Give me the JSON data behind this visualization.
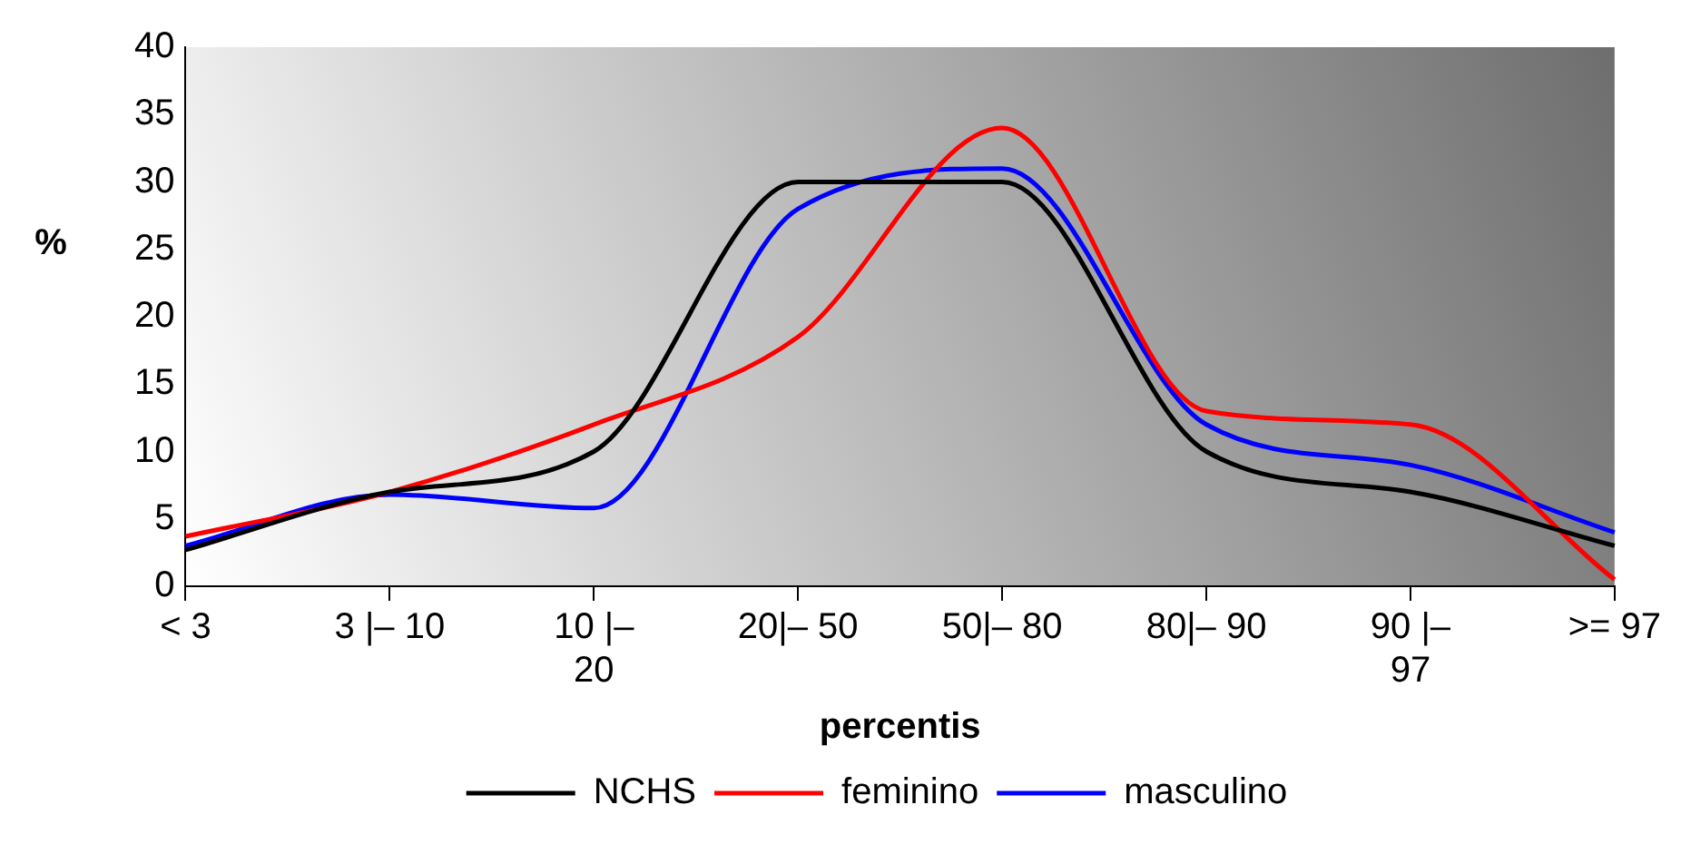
{
  "chart_data": {
    "type": "line",
    "xlabel": "percentis",
    "ylabel": "%",
    "categories": [
      "< 3",
      "3 |– 10",
      "10 |– 20",
      "20|– 50",
      "50|– 80",
      "80|– 90",
      "90 |– 97",
      ">= 97"
    ],
    "series": [
      {
        "name": "NCHS",
        "color": "#000000",
        "values": [
          2.7,
          7,
          10,
          30,
          30,
          10,
          7,
          3
        ]
      },
      {
        "name": "feminino",
        "color": "#ff0000",
        "values": [
          3.7,
          7,
          12,
          18.5,
          34,
          13,
          12,
          0.5
        ]
      },
      {
        "name": "masculino",
        "color": "#0000ff",
        "values": [
          3,
          6.8,
          5.8,
          28,
          31,
          12,
          9,
          4
        ]
      }
    ],
    "ylim": [
      0,
      40
    ],
    "yticks": [
      0,
      5,
      10,
      15,
      20,
      25,
      30,
      35,
      40
    ],
    "grid": false,
    "legend": "bottom",
    "marker": "none",
    "line_style": "solid"
  }
}
